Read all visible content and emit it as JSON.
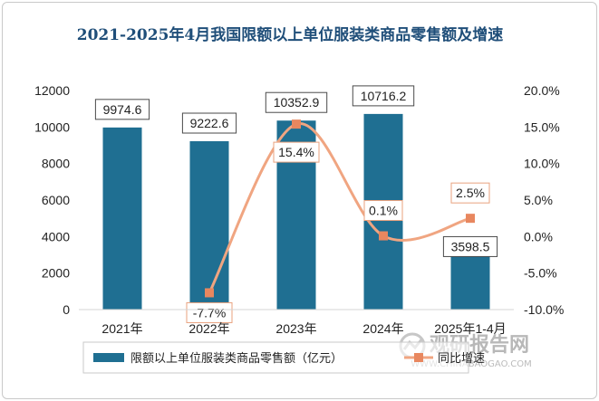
{
  "chart_data": {
    "type": "bar",
    "title": "2021-2025年4月我国限额以上单位服装类商品零售额及增速",
    "categories": [
      "2021年",
      "2022年",
      "2023年",
      "2024年",
      "2025年1-4月"
    ],
    "series": [
      {
        "name": "限额以上单位服装类商品零售额（亿元）",
        "type": "bar",
        "axis": "left",
        "values": [
          9974.6,
          9222.6,
          10352.9,
          10716.2,
          3598.5
        ],
        "labels": [
          "9974.6",
          "9222.6",
          "10352.9",
          "10716.2",
          "3598.5"
        ]
      },
      {
        "name": "同比增速",
        "type": "line",
        "axis": "right",
        "values": [
          null,
          -7.7,
          15.4,
          0.1,
          2.5
        ],
        "labels": [
          "",
          "-7.7%",
          "15.4%",
          "0.1%",
          "2.5%"
        ]
      }
    ],
    "y_left": {
      "min": 0,
      "max": 12000,
      "ticks": [
        "0",
        "2000",
        "4000",
        "6000",
        "8000",
        "10000",
        "12000"
      ]
    },
    "y_right": {
      "min": -10,
      "max": 20,
      "ticks": [
        "-10.0%",
        "-5.0%",
        "0.0%",
        "5.0%",
        "10.0%",
        "15.0%",
        "20.0%"
      ]
    },
    "grid": false,
    "legend_position": "bottom",
    "colors": {
      "bar": "#1f6f92",
      "line": "#f0a581",
      "marker": "#e8875f",
      "title": "#1f4e79"
    }
  },
  "watermark": {
    "text": "观研报告网",
    "sub": "WWW.CHINABAOGAO.COM"
  }
}
